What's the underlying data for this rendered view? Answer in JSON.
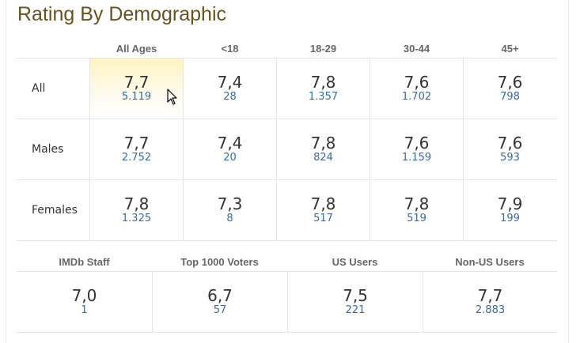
{
  "title": "Rating By Demographic",
  "age_headers": [
    "All Ages",
    "<18",
    "18-29",
    "30-44",
    "45+"
  ],
  "rows": [
    {
      "label": "All",
      "cells": [
        {
          "rating": "7,7",
          "votes": "5.119"
        },
        {
          "rating": "7,4",
          "votes": "28"
        },
        {
          "rating": "7,8",
          "votes": "1.357"
        },
        {
          "rating": "7,6",
          "votes": "1.702"
        },
        {
          "rating": "7,6",
          "votes": "798"
        }
      ]
    },
    {
      "label": "Males",
      "cells": [
        {
          "rating": "7,7",
          "votes": "2.752"
        },
        {
          "rating": "7,4",
          "votes": "20"
        },
        {
          "rating": "7,8",
          "votes": "824"
        },
        {
          "rating": "7,6",
          "votes": "1.159"
        },
        {
          "rating": "7,6",
          "votes": "593"
        }
      ]
    },
    {
      "label": "Females",
      "cells": [
        {
          "rating": "7,8",
          "votes": "1.325"
        },
        {
          "rating": "7,3",
          "votes": "8"
        },
        {
          "rating": "7,8",
          "votes": "517"
        },
        {
          "rating": "7,8",
          "votes": "519"
        },
        {
          "rating": "7,9",
          "votes": "199"
        }
      ]
    }
  ],
  "groups": [
    {
      "label": "IMDb Staff",
      "rating": "7,0",
      "votes": "1"
    },
    {
      "label": "Top 1000 Voters",
      "rating": "6,7",
      "votes": "57"
    },
    {
      "label": "US Users",
      "rating": "7,5",
      "votes": "221"
    },
    {
      "label": "Non-US Users",
      "rating": "7,7",
      "votes": "2.883"
    }
  ]
}
